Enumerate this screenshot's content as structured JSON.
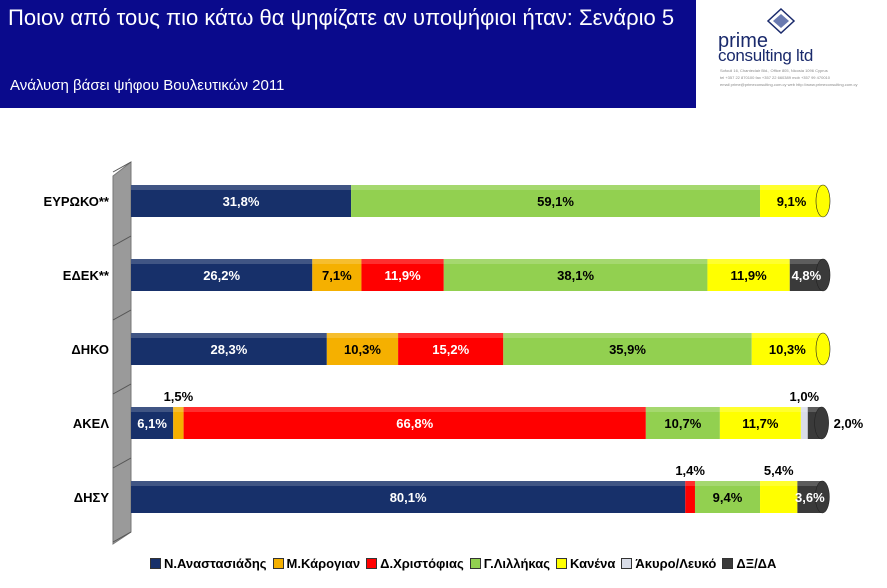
{
  "header": {
    "title": "Ποιον από τους πιο κάτω θα ψηφίζατε αν υποψήφιοι ήταν: Σενάριο 5",
    "subtitle": "Ανάλυση βάσει ψήφου Βουλευτικών 2011"
  },
  "logo": {
    "line1": "prime",
    "line2": "consulting ltd",
    "fine1": "Sofouli 16, Chanteclair Bld., Office 805, Nicosia 1096 Cyprus",
    "fine2": "tel +357 22 870100  fax +357 22 660389  mob +357 99 470010",
    "fine3": "email prime@primeconsulting.com.cy  web http://www.primeconsulting.com.cy"
  },
  "colors": {
    "Ν.Αναστασιάδης": "#17306a",
    "Μ.Κάρογιαν": "#f5b000",
    "Δ.Χριστόφιας": "#ff0000",
    "Γ.Λιλλήκας": "#92d050",
    "Κανένα": "#ffff00",
    "Άκυρο/Λευκό": "#d9dde8",
    "ΔΞ/ΔΑ": "#3a3a3a",
    "wall": "#9a9a9a"
  },
  "chart_data": {
    "type": "bar",
    "orientation": "horizontal",
    "stacked": true,
    "percent": true,
    "categories": [
      "ΕΥΡΩΚΟ**",
      "ΕΔΕΚ**",
      "ΔΗΚΟ",
      "ΑΚΕΛ",
      "ΔΗΣΥ"
    ],
    "series": [
      {
        "name": "Ν.Αναστασιάδης",
        "values": [
          31.8,
          26.2,
          28.3,
          6.1,
          80.1
        ]
      },
      {
        "name": "Μ.Κάρογιαν",
        "values": [
          0,
          7.1,
          10.3,
          1.5,
          0
        ]
      },
      {
        "name": "Δ.Χριστόφιας",
        "values": [
          0,
          11.9,
          15.2,
          66.8,
          1.4
        ]
      },
      {
        "name": "Γ.Λιλλήκας",
        "values": [
          59.1,
          38.1,
          35.9,
          10.7,
          9.4
        ]
      },
      {
        "name": "Κανένα",
        "values": [
          9.1,
          11.9,
          10.3,
          11.7,
          5.4
        ]
      },
      {
        "name": "Άκυρο/Λευκό",
        "values": [
          0,
          0,
          0,
          1.0,
          0
        ]
      },
      {
        "name": "ΔΞ/ΔΑ",
        "values": [
          0,
          4.8,
          0,
          2.0,
          3.6
        ]
      }
    ],
    "data_labels": [
      [
        "31,8%",
        "",
        "",
        "59,1%",
        "9,1%",
        "",
        ""
      ],
      [
        "26,2%",
        "7,1%",
        "11,9%",
        "38,1%",
        "11,9%",
        "",
        "4,8%"
      ],
      [
        "28,3%",
        "10,3%",
        "15,2%",
        "35,9%",
        "10,3%",
        "",
        ""
      ],
      [
        "6,1%",
        "1,5%",
        "66,8%",
        "10,7%",
        "11,7%",
        "1,0%",
        "2,0%"
      ],
      [
        "80,1%",
        "",
        "1,4%",
        "9,4%",
        "5,4%",
        "",
        "3,6%"
      ]
    ],
    "xlim": [
      0,
      100
    ],
    "legend": "bottom",
    "grid": false
  }
}
